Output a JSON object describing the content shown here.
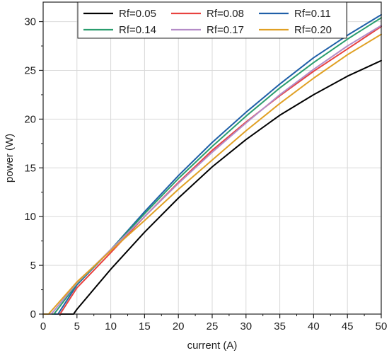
{
  "chart_data": {
    "type": "line",
    "xlabel": "current (A)",
    "ylabel": "power (W)",
    "xlim": [
      0,
      50
    ],
    "ylim": [
      0,
      32
    ],
    "xticks": [
      0,
      5,
      10,
      15,
      20,
      25,
      30,
      35,
      40,
      45,
      50
    ],
    "yticks": [
      0,
      5,
      10,
      15,
      20,
      25,
      30
    ],
    "x_minor_step": 2.5,
    "y_minor_step": 2.5,
    "grid": true,
    "legend_position": "top",
    "series": [
      {
        "name": "Rf=0.05",
        "color": "#000000",
        "x": [
          0,
          4.5,
          5,
          10,
          15,
          20,
          25,
          30,
          35,
          40,
          45,
          50
        ],
        "y": [
          0,
          0,
          0.5,
          4.6,
          8.4,
          11.9,
          15.1,
          17.9,
          20.4,
          22.5,
          24.4,
          26.0
        ]
      },
      {
        "name": "Rf=0.08",
        "color": "#e8423f",
        "x": [
          0,
          2.5,
          5,
          10,
          15,
          20,
          25,
          30,
          35,
          40,
          45,
          50
        ],
        "y": [
          0,
          0,
          2.7,
          6.3,
          10.0,
          13.5,
          16.8,
          19.7,
          22.4,
          24.9,
          27.2,
          29.5
        ]
      },
      {
        "name": "Rf=0.11",
        "color": "#1f5fa8",
        "x": [
          0,
          2.2,
          5,
          10,
          15,
          20,
          25,
          30,
          35,
          40,
          45,
          50
        ],
        "y": [
          0,
          0,
          3.0,
          6.6,
          10.5,
          14.2,
          17.6,
          20.7,
          23.6,
          26.3,
          28.6,
          30.7
        ]
      },
      {
        "name": "Rf=0.14",
        "color": "#2a9d6e",
        "x": [
          0,
          1.6,
          5,
          10,
          15,
          20,
          25,
          30,
          35,
          40,
          45,
          50
        ],
        "y": [
          0,
          0,
          3.1,
          6.6,
          10.3,
          13.9,
          17.2,
          20.3,
          23.2,
          25.8,
          28.2,
          30.4
        ]
      },
      {
        "name": "Rf=0.17",
        "color": "#b48cc8",
        "x": [
          0,
          1.2,
          5,
          10,
          15,
          20,
          25,
          30,
          35,
          40,
          45,
          50
        ],
        "y": [
          0,
          0,
          3.2,
          6.6,
          10.0,
          13.4,
          16.6,
          19.6,
          22.5,
          25.1,
          27.5,
          29.6
        ]
      },
      {
        "name": "Rf=0.20",
        "color": "#e0a024",
        "x": [
          0,
          0.8,
          5,
          10,
          15,
          20,
          25,
          30,
          35,
          40,
          45,
          50
        ],
        "y": [
          0,
          0,
          3.3,
          6.5,
          9.6,
          12.8,
          15.8,
          18.8,
          21.6,
          24.2,
          26.6,
          28.7
        ]
      }
    ]
  }
}
